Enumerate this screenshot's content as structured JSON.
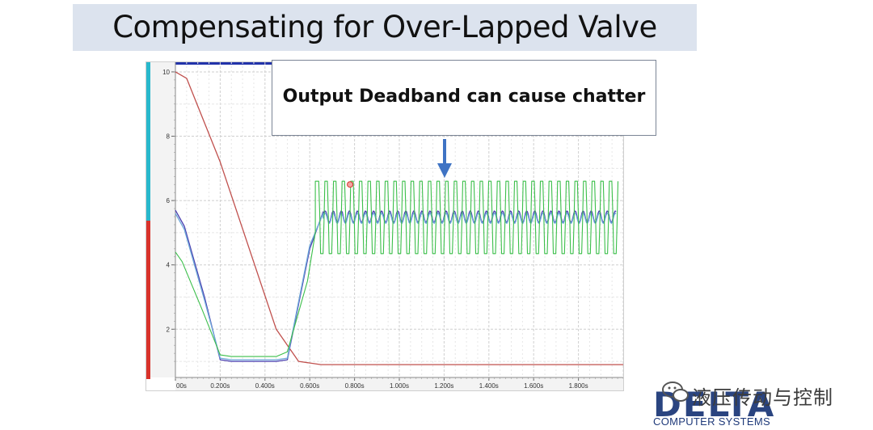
{
  "slide": {
    "title": "Compensating for Over-Lapped Valve",
    "callout": "Output Deadband can cause chatter"
  },
  "watermark": {
    "text": "液压传动与控制",
    "icon": "wechat-icon"
  },
  "logo": {
    "name": "DELTA",
    "subtitle": "COMPUTER SYSTEMS"
  },
  "chart_data": {
    "type": "line",
    "x_tick_labels": [
      "00s",
      "0.200s",
      "0.400s",
      "0.600s",
      "0.800s",
      "1.000s",
      "1.200s",
      "1.400s",
      "1.600s",
      "1.800s"
    ],
    "y_tick_labels": [
      "10",
      "8",
      "6",
      "4",
      "2"
    ],
    "xlim": [
      0,
      2.0
    ],
    "ylim": [
      0.5,
      10.3
    ],
    "grid": true,
    "left_bar_colors": [
      "#28b8cc",
      "#d9322b"
    ],
    "series": [
      {
        "color": "#c0504d",
        "kind": "target",
        "points": [
          [
            0,
            10
          ],
          [
            0.05,
            9.8
          ],
          [
            0.2,
            7.2
          ],
          [
            0.45,
            2.0
          ],
          [
            0.55,
            1.0
          ],
          [
            0.65,
            0.9
          ],
          [
            2.0,
            0.9
          ]
        ]
      },
      {
        "color": "#4a3fb0",
        "kind": "position",
        "points": [
          [
            0,
            5.7
          ],
          [
            0.04,
            5.2
          ],
          [
            0.13,
            3.0
          ],
          [
            0.2,
            1.05
          ],
          [
            0.25,
            1.0
          ],
          [
            0.45,
            1.0
          ],
          [
            0.5,
            1.05
          ],
          [
            0.6,
            4.5
          ],
          [
            0.66,
            5.65
          ]
        ],
        "osc_start": 0.66,
        "osc_center": 5.5,
        "osc_amp": 0.18,
        "osc_period": 0.036
      },
      {
        "color": "#6da7d8",
        "kind": "position2",
        "points": [
          [
            0,
            5.6
          ],
          [
            0.04,
            5.1
          ],
          [
            0.13,
            2.9
          ],
          [
            0.2,
            1.1
          ],
          [
            0.25,
            1.05
          ],
          [
            0.45,
            1.05
          ],
          [
            0.5,
            1.1
          ],
          [
            0.6,
            4.6
          ],
          [
            0.66,
            5.6
          ]
        ],
        "osc_start": 0.66,
        "osc_center": 5.45,
        "osc_amp": 0.16,
        "osc_period": 0.036
      },
      {
        "color": "#3bbf4a",
        "kind": "output",
        "points": [
          [
            0,
            4.4
          ],
          [
            0.03,
            4.1
          ],
          [
            0.12,
            2.6
          ],
          [
            0.2,
            1.2
          ],
          [
            0.25,
            1.15
          ],
          [
            0.45,
            1.15
          ],
          [
            0.5,
            1.3
          ],
          [
            0.59,
            3.5
          ],
          [
            0.625,
            5.0
          ]
        ],
        "square_start": 0.625,
        "square_high": 6.6,
        "square_low": 4.35,
        "square_period": 0.0385
      }
    ]
  }
}
